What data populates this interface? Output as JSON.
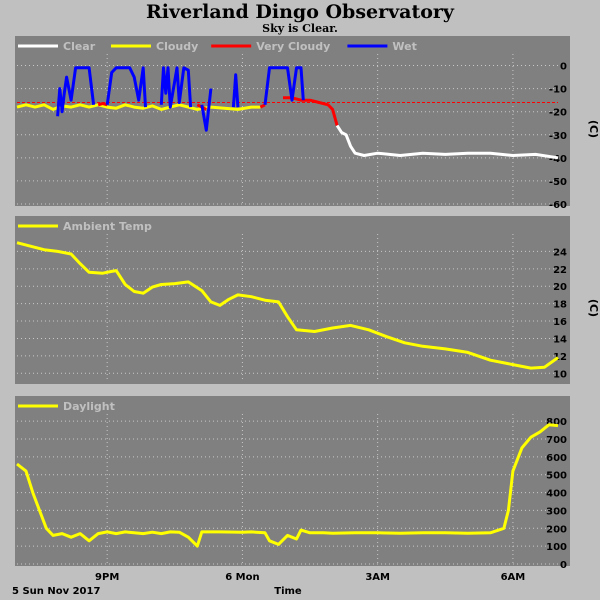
{
  "title": "Riverland Dingo Observatory",
  "subtitle": "Sky is Clear.",
  "footer": {
    "date": "5 Sun Nov 2017",
    "axis_label": "Time"
  },
  "colors": {
    "panel_bg": "#808080",
    "page_bg": "#c0c0c0",
    "grid": "#c8c8c8",
    "clear": "#ffffff",
    "cloudy": "#ffff00",
    "very_cloudy": "#ff0000",
    "wet": "#0000ff",
    "threshold": "#ff0000"
  },
  "chart_data": [
    {
      "type": "line",
      "name": "sky",
      "legend": [
        {
          "label": "Clear",
          "color": "#ffffff"
        },
        {
          "label": "Cloudy",
          "color": "#ffff00"
        },
        {
          "label": "Very Cloudy",
          "color": "#ff0000"
        },
        {
          "label": "Wet",
          "color": "#0000ff"
        }
      ],
      "ylabel": "(C)",
      "ylim": [
        -60,
        5
      ],
      "yticks": [
        0,
        -10,
        -20,
        -30,
        -40,
        -50,
        -60
      ],
      "xlim": [
        19.0,
        31.0
      ],
      "threshold": -16,
      "series": [
        {
          "name": "Cloudy",
          "color": "#ffff00",
          "segments": [
            [
              [
                19.0,
                -18
              ],
              [
                19.2,
                -17
              ],
              [
                19.4,
                -18
              ],
              [
                19.6,
                -17
              ],
              [
                19.8,
                -19
              ],
              [
                20.0,
                -17.5
              ],
              [
                20.2,
                -18
              ],
              [
                20.4,
                -17
              ],
              [
                20.6,
                -18
              ],
              [
                20.8,
                -17
              ],
              [
                21.0,
                -18
              ],
              [
                21.2,
                -18.5
              ],
              [
                21.4,
                -17
              ],
              [
                21.6,
                -18
              ],
              [
                21.8,
                -18.5
              ],
              [
                22.0,
                -17.5
              ],
              [
                22.2,
                -19
              ],
              [
                22.4,
                -18
              ],
              [
                22.6,
                -17
              ],
              [
                22.8,
                -18
              ],
              [
                23.0,
                -19
              ],
              [
                23.3,
                -18
              ],
              [
                23.6,
                -18.5
              ],
              [
                23.9,
                -19
              ],
              [
                24.2,
                -18
              ],
              [
                24.4,
                -18
              ]
            ]
          ]
        },
        {
          "name": "Very Cloudy",
          "color": "#ff0000",
          "segments": [
            [
              [
                20.8,
                -17
              ],
              [
                20.9,
                -16.5
              ],
              [
                21.0,
                -17
              ]
            ],
            [
              [
                23.0,
                -17
              ],
              [
                23.1,
                -18
              ],
              [
                23.2,
                -19
              ]
            ],
            [
              [
                24.4,
                -18
              ],
              [
                24.5,
                -17
              ]
            ],
            [
              [
                24.9,
                -14
              ],
              [
                25.1,
                -14
              ],
              [
                25.3,
                -15
              ],
              [
                25.5,
                -15
              ],
              [
                25.7,
                -16
              ],
              [
                25.9,
                -17
              ],
              [
                26.0,
                -19
              ],
              [
                26.1,
                -26
              ]
            ]
          ]
        },
        {
          "name": "Wet",
          "color": "#0000ff",
          "segments": [
            [
              [
                19.9,
                -22
              ],
              [
                19.95,
                -10
              ],
              [
                20.0,
                -20
              ],
              [
                20.05,
                -12
              ],
              [
                20.1,
                -5
              ],
              [
                20.2,
                -15
              ],
              [
                20.3,
                -1
              ],
              [
                20.6,
                -1
              ],
              [
                20.7,
                -17
              ]
            ],
            [
              [
                21.0,
                -17
              ],
              [
                21.1,
                -3
              ],
              [
                21.2,
                -1
              ],
              [
                21.5,
                -1
              ],
              [
                21.6,
                -5
              ],
              [
                21.7,
                -15
              ],
              [
                21.8,
                -1
              ],
              [
                21.85,
                -18
              ]
            ],
            [
              [
                22.2,
                -17
              ],
              [
                22.25,
                -1
              ],
              [
                22.3,
                -12
              ],
              [
                22.35,
                -1
              ],
              [
                22.4,
                -18
              ],
              [
                22.55,
                -1
              ],
              [
                22.6,
                -16
              ],
              [
                22.7,
                -1
              ],
              [
                22.8,
                -2
              ],
              [
                22.85,
                -18
              ]
            ],
            [
              [
                23.1,
                -17
              ],
              [
                23.2,
                -28
              ],
              [
                23.3,
                -10
              ]
            ],
            [
              [
                23.8,
                -18
              ],
              [
                23.85,
                -4
              ],
              [
                23.9,
                -18
              ]
            ],
            [
              [
                24.5,
                -17
              ],
              [
                24.6,
                -1
              ],
              [
                25.0,
                -1
              ],
              [
                25.1,
                -15
              ],
              [
                25.2,
                -1
              ],
              [
                25.3,
                -1
              ],
              [
                25.35,
                -15
              ]
            ]
          ]
        },
        {
          "name": "Clear",
          "color": "#ffffff",
          "segments": [
            [
              [
                26.1,
                -26
              ],
              [
                26.2,
                -29
              ],
              [
                26.3,
                -30
              ],
              [
                26.4,
                -35
              ],
              [
                26.5,
                -38
              ],
              [
                26.7,
                -39
              ],
              [
                27.0,
                -38
              ],
              [
                27.5,
                -39
              ],
              [
                28.0,
                -38
              ],
              [
                28.5,
                -38.5
              ],
              [
                29.0,
                -38
              ],
              [
                29.5,
                -38
              ],
              [
                30.0,
                -39
              ],
              [
                30.5,
                -38.5
              ],
              [
                31.0,
                -40
              ]
            ]
          ]
        }
      ]
    },
    {
      "type": "line",
      "name": "ambient",
      "legend": [
        {
          "label": "Ambient Temp",
          "color": "#ffff00"
        }
      ],
      "ylabel": "(C)",
      "ylim": [
        9,
        26
      ],
      "yticks": [
        24,
        22,
        20,
        18,
        16,
        14,
        12,
        10
      ],
      "xlim": [
        19.0,
        31.0
      ],
      "series": [
        {
          "name": "Ambient Temp",
          "color": "#ffff00",
          "points": [
            [
              19.0,
              25
            ],
            [
              19.3,
              24.6
            ],
            [
              19.6,
              24.2
            ],
            [
              19.9,
              24.0
            ],
            [
              20.2,
              23.7
            ],
            [
              20.4,
              22.6
            ],
            [
              20.6,
              21.6
            ],
            [
              20.9,
              21.5
            ],
            [
              21.1,
              21.7
            ],
            [
              21.2,
              21.8
            ],
            [
              21.4,
              20.2
            ],
            [
              21.6,
              19.4
            ],
            [
              21.8,
              19.2
            ],
            [
              22.0,
              19.9
            ],
            [
              22.2,
              20.2
            ],
            [
              22.5,
              20.3
            ],
            [
              22.8,
              20.5
            ],
            [
              23.1,
              19.5
            ],
            [
              23.3,
              18.2
            ],
            [
              23.5,
              17.8
            ],
            [
              23.7,
              18.5
            ],
            [
              23.9,
              19.0
            ],
            [
              24.2,
              18.8
            ],
            [
              24.5,
              18.4
            ],
            [
              24.8,
              18.2
            ],
            [
              25.0,
              16.5
            ],
            [
              25.2,
              15.0
            ],
            [
              25.4,
              14.9
            ],
            [
              25.6,
              14.8
            ],
            [
              26.0,
              15.2
            ],
            [
              26.4,
              15.5
            ],
            [
              26.8,
              15.0
            ],
            [
              27.2,
              14.2
            ],
            [
              27.6,
              13.5
            ],
            [
              28.0,
              13.1
            ],
            [
              28.5,
              12.8
            ],
            [
              29.0,
              12.4
            ],
            [
              29.5,
              11.5
            ],
            [
              30.0,
              11.0
            ],
            [
              30.4,
              10.6
            ],
            [
              30.7,
              10.7
            ],
            [
              31.0,
              11.8
            ]
          ]
        }
      ]
    },
    {
      "type": "line",
      "name": "daylight",
      "legend": [
        {
          "label": "Daylight",
          "color": "#ffff00"
        }
      ],
      "ylabel": "",
      "ylim": [
        0,
        840
      ],
      "yticks": [
        800,
        700,
        600,
        500,
        400,
        300,
        200,
        100,
        0
      ],
      "xlim": [
        19.0,
        31.0
      ],
      "xticks": [
        {
          "x": 21.0,
          "label": "9PM"
        },
        {
          "x": 24.0,
          "label": "6 Mon"
        },
        {
          "x": 27.0,
          "label": "3AM"
        },
        {
          "x": 30.0,
          "label": "6AM"
        }
      ],
      "series": [
        {
          "name": "Daylight",
          "color": "#ffff00",
          "points": [
            [
              19.0,
              560
            ],
            [
              19.2,
              520
            ],
            [
              19.35,
              400
            ],
            [
              19.5,
              300
            ],
            [
              19.65,
              200
            ],
            [
              19.8,
              160
            ],
            [
              20.0,
              170
            ],
            [
              20.2,
              150
            ],
            [
              20.4,
              170
            ],
            [
              20.6,
              130
            ],
            [
              20.8,
              170
            ],
            [
              21.0,
              180
            ],
            [
              21.2,
              170
            ],
            [
              21.4,
              180
            ],
            [
              21.6,
              175
            ],
            [
              21.8,
              170
            ],
            [
              22.0,
              178
            ],
            [
              22.2,
              170
            ],
            [
              22.4,
              180
            ],
            [
              22.6,
              178
            ],
            [
              22.8,
              150
            ],
            [
              23.0,
              100
            ],
            [
              23.1,
              180
            ],
            [
              23.5,
              180
            ],
            [
              24.0,
              178
            ],
            [
              24.2,
              180
            ],
            [
              24.5,
              175
            ],
            [
              24.6,
              130
            ],
            [
              24.8,
              110
            ],
            [
              25.0,
              160
            ],
            [
              25.2,
              140
            ],
            [
              25.3,
              190
            ],
            [
              25.5,
              175
            ],
            [
              25.8,
              175
            ],
            [
              26.0,
              172
            ],
            [
              26.5,
              175
            ],
            [
              27.0,
              175
            ],
            [
              27.5,
              172
            ],
            [
              28.0,
              175
            ],
            [
              28.5,
              175
            ],
            [
              29.0,
              172
            ],
            [
              29.5,
              175
            ],
            [
              29.8,
              200
            ],
            [
              29.9,
              300
            ],
            [
              30.0,
              520
            ],
            [
              30.2,
              650
            ],
            [
              30.4,
              710
            ],
            [
              30.6,
              740
            ],
            [
              30.8,
              780
            ],
            [
              31.0,
              775
            ]
          ]
        }
      ]
    }
  ]
}
